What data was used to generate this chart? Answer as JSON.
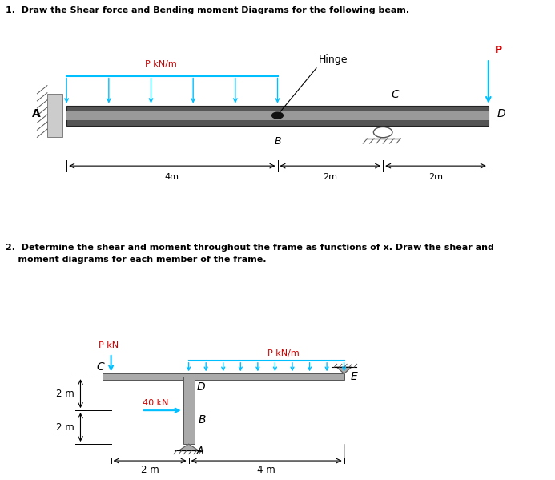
{
  "title1": "1.  Draw the Shear force and Bending moment Diagrams for the following beam.",
  "title2_line1": "2.  Determine the shear and moment throughout the frame as functions of x. Draw the shear and",
  "title2_line2": "    moment diagrams for each member of the frame.",
  "bg_color": "#ffffff",
  "text_color": "#000000",
  "red_color": "#cc0000",
  "cyan_color": "#00bfff",
  "beam_color": "#666666",
  "beam_dark": "#222222",
  "support_color": "#aaaaaa"
}
